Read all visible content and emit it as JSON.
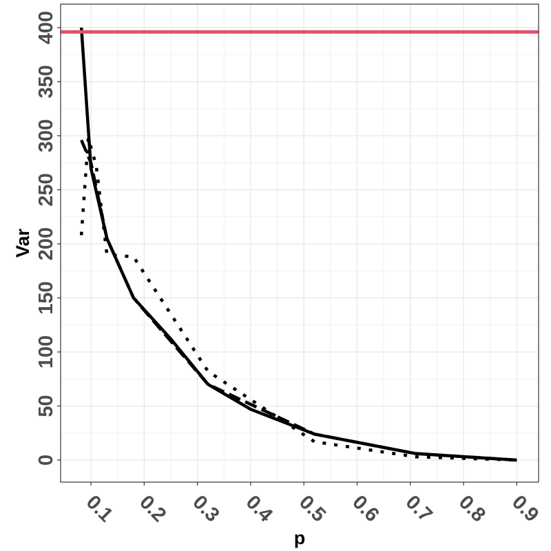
{
  "chart_data": {
    "type": "line",
    "x_label": "p",
    "y_label": "Var",
    "xlim": [
      0.043,
      0.941
    ],
    "ylim": [
      -20.4,
      421.7
    ],
    "xticks": [
      0.1,
      0.2,
      0.3,
      0.4,
      0.5,
      0.6,
      0.7,
      0.8,
      0.9
    ],
    "yticks": [
      0,
      50,
      100,
      150,
      200,
      250,
      300,
      350,
      400
    ],
    "grid": true,
    "minor_grid": true,
    "series": [
      {
        "color": "#000000",
        "dash": "solid",
        "x": [
          0.082,
          0.1,
          0.13,
          0.18,
          0.25,
          0.32,
          0.4,
          0.52,
          0.71,
          0.9
        ],
        "values": [
          400,
          270,
          205,
          150,
          112,
          70,
          47,
          24,
          6,
          0
        ]
      },
      {
        "color": "#000000",
        "dash": "dashed",
        "x": [
          0.082,
          0.1,
          0.13,
          0.18,
          0.32,
          0.52,
          0.71,
          0.9
        ],
        "values": [
          296,
          275,
          205,
          150,
          70,
          24,
          6,
          0
        ]
      },
      {
        "color": "#000000",
        "dash": "dotted",
        "x": [
          0.082,
          0.095,
          0.11,
          0.13,
          0.18,
          0.32,
          0.52,
          0.71,
          0.9
        ],
        "values": [
          208,
          298,
          272,
          190,
          188,
          82,
          17,
          3,
          0
        ]
      }
    ],
    "hlines": [
      {
        "value": 396,
        "color": "#df536b"
      }
    ]
  }
}
